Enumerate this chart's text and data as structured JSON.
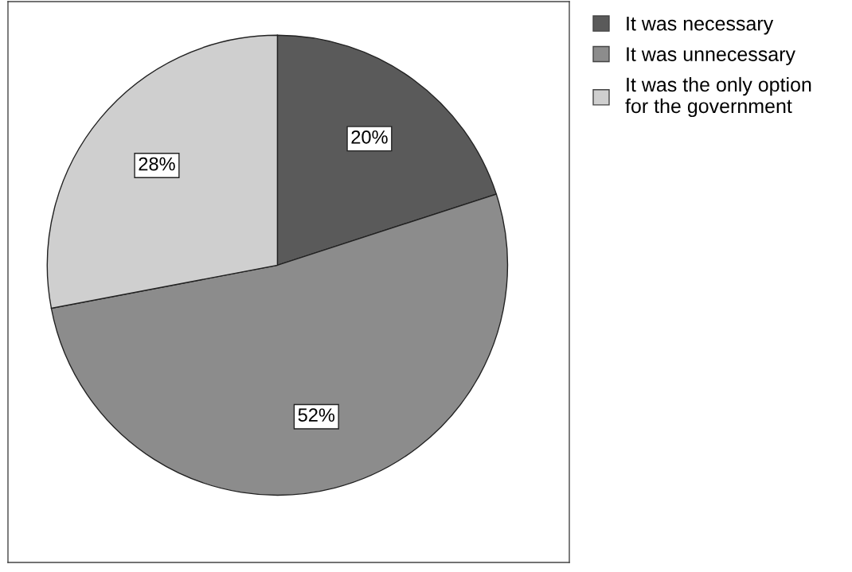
{
  "chart_data": {
    "type": "pie",
    "categories": [
      "It was necessary",
      "It was unnecessary",
      "It was the only option\nfor the government"
    ],
    "values": [
      20,
      52,
      28
    ],
    "value_labels": [
      "20%",
      "52%",
      "28%"
    ],
    "colors": [
      "#5a5a5a",
      "#8c8c8c",
      "#cfcfcf"
    ],
    "legend": "right"
  }
}
